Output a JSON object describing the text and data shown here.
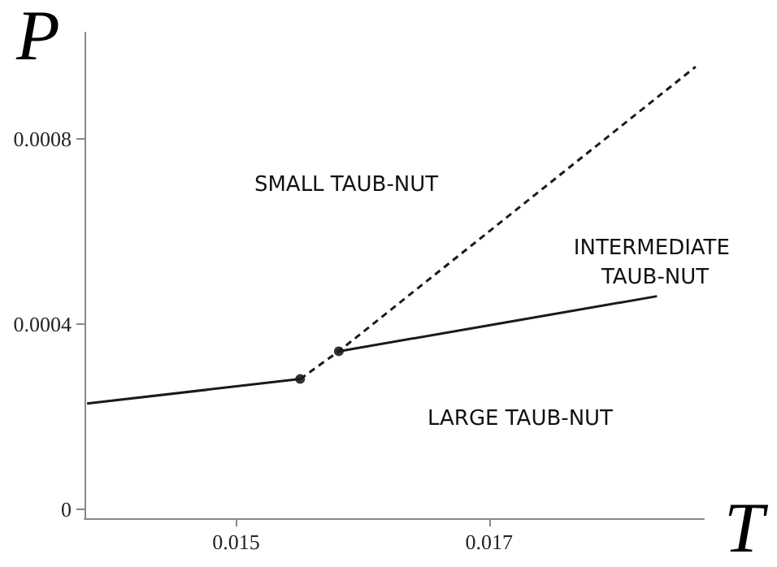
{
  "chart_data": {
    "type": "line",
    "xlabel": "T",
    "ylabel": "P",
    "xlim": [
      0.0138,
      0.0187
    ],
    "xticks": [
      0.015,
      0.017
    ],
    "ylim": [
      -2e-05,
      0.00103
    ],
    "yticks": [
      0,
      0.0004,
      0.0008
    ],
    "grid": false,
    "series": [
      {
        "color": "#1a1a1a",
        "x": [
          0.01382,
          0.015506
        ],
        "values": [
          0.000228,
          0.000281
        ],
        "line_style": "solid",
        "marker": "none"
      },
      {
        "color": "#1a1a1a",
        "x": [
          0.015812,
          0.017,
          0.018329
        ],
        "values": [
          0.000341,
          0.000397,
          0.00046
        ],
        "line_style": "solid",
        "marker": "none"
      },
      {
        "color": "#1a1a1a",
        "x": [
          0.015506,
          0.015812,
          0.018635
        ],
        "values": [
          0.000281,
          0.000341,
          0.000956
        ],
        "line_style": "dashed",
        "marker": "none"
      },
      {
        "type": "scatter",
        "color": "#000000",
        "x": [
          0.015506,
          0.015812
        ],
        "values": [
          0.000281,
          0.000341
        ],
        "marker": "circle"
      }
    ],
    "annotations": [
      "SMALL TAUB-NUT",
      "INTERMEDIATE TAUB-NUT",
      "LARGE TAUB-NUT"
    ]
  }
}
